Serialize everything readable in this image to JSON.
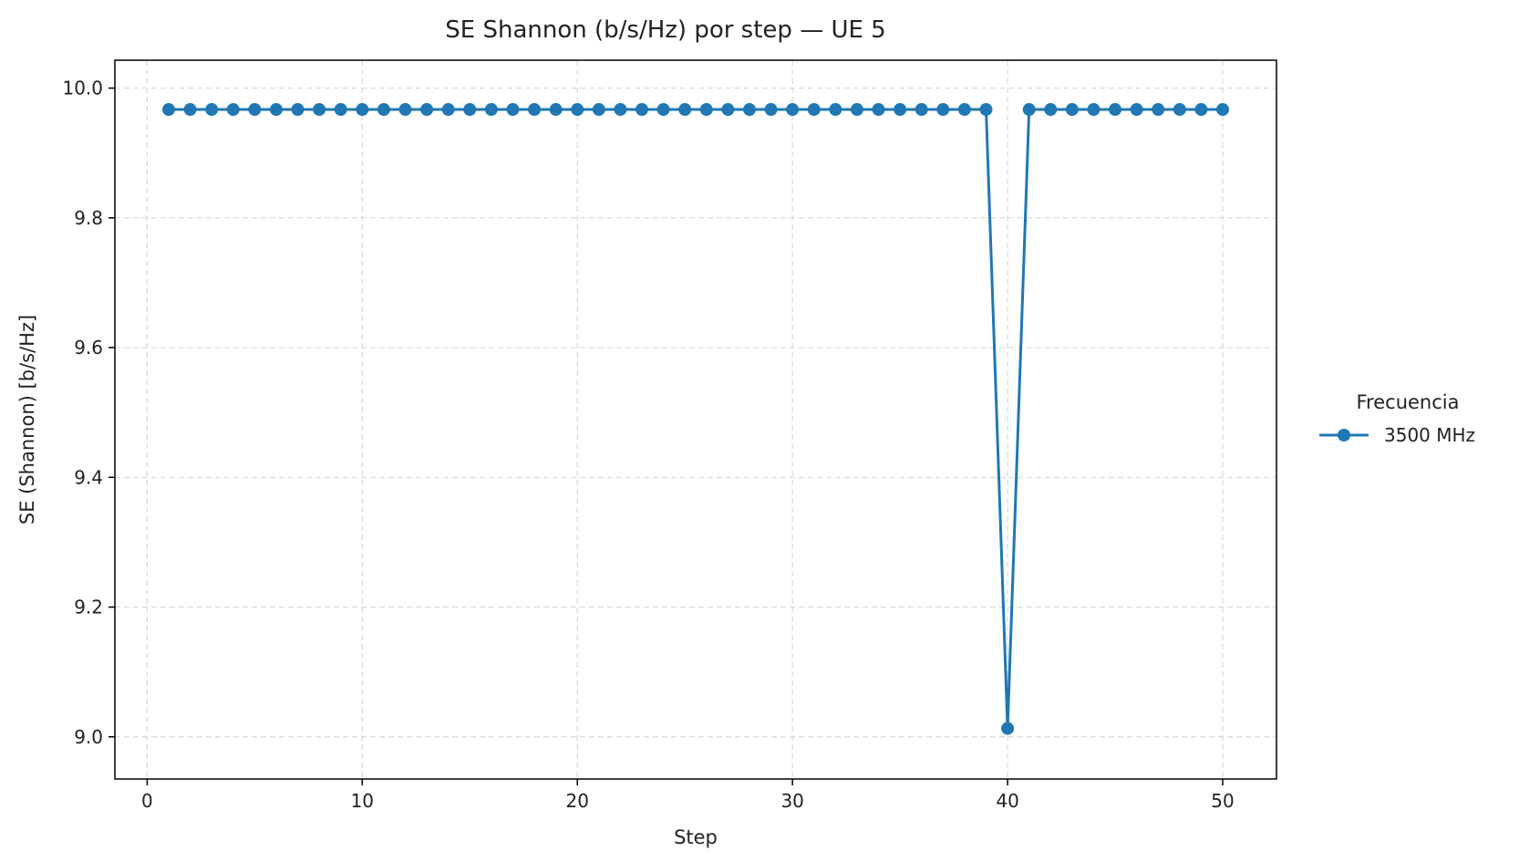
{
  "chart_data": {
    "type": "line",
    "title": "SE Shannon (b/s/Hz) por step — UE 5",
    "xlabel": "Step",
    "ylabel": "SE (Shannon) [b/s/Hz]",
    "xlim": [
      -1.5,
      52.5
    ],
    "ylim": [
      8.935,
      10.043
    ],
    "xticks": [
      0,
      10,
      20,
      30,
      40,
      50
    ],
    "yticks": [
      9.0,
      9.2,
      9.4,
      9.6,
      9.8,
      10.0
    ],
    "xtick_labels": [
      "0",
      "10",
      "20",
      "30",
      "40",
      "50"
    ],
    "ytick_labels": [
      "9.0",
      "9.2",
      "9.4",
      "9.6",
      "9.8",
      "10.0"
    ],
    "grid": true,
    "legend": {
      "title": "Frecuencia",
      "placement": "outside-right"
    },
    "x": [
      1,
      2,
      3,
      4,
      5,
      6,
      7,
      8,
      9,
      10,
      11,
      12,
      13,
      14,
      15,
      16,
      17,
      18,
      19,
      20,
      21,
      22,
      23,
      24,
      25,
      26,
      27,
      28,
      29,
      30,
      31,
      32,
      33,
      34,
      35,
      36,
      37,
      38,
      39,
      40,
      41,
      42,
      43,
      44,
      45,
      46,
      47,
      48,
      49,
      50
    ],
    "series": [
      {
        "name": "3500 MHz",
        "color": "#1f77b4",
        "marker": "circle",
        "values": [
          9.967,
          9.967,
          9.967,
          9.967,
          9.967,
          9.967,
          9.967,
          9.967,
          9.967,
          9.967,
          9.967,
          9.967,
          9.967,
          9.967,
          9.967,
          9.967,
          9.967,
          9.967,
          9.967,
          9.967,
          9.967,
          9.967,
          9.967,
          9.967,
          9.967,
          9.967,
          9.967,
          9.967,
          9.967,
          9.967,
          9.967,
          9.967,
          9.967,
          9.967,
          9.967,
          9.967,
          9.967,
          9.967,
          9.967,
          9.013,
          9.967,
          9.967,
          9.967,
          9.967,
          9.967,
          9.967,
          9.967,
          9.967,
          9.967,
          9.967
        ]
      }
    ]
  }
}
